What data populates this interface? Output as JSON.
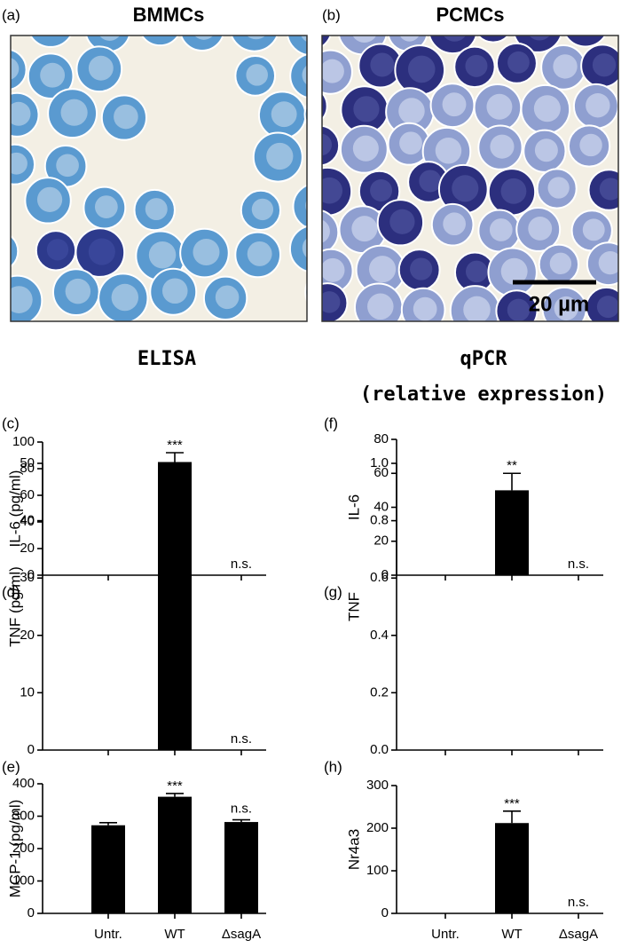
{
  "images": [
    {
      "label": "(a)",
      "title": "BMMCs"
    },
    {
      "label": "(b)",
      "title": "PCMCs",
      "scale_bar": "20 µm"
    }
  ],
  "sections": [
    "ELISA",
    "qPCR",
    "(relative expression)"
  ],
  "chart_data": [
    {
      "type": "bar",
      "label": "(c)",
      "ylabel": "IL-6 (pg/ml)",
      "categories": [
        null,
        null,
        null
      ],
      "values": [
        0,
        85,
        0
      ],
      "errors": [
        null,
        7,
        null
      ],
      "significance": [
        null,
        "***",
        "n.s."
      ],
      "color": "#000000",
      "ylim": [
        0,
        100
      ],
      "yticks": [
        0,
        20,
        40,
        60,
        80,
        100
      ]
    },
    {
      "type": "bar",
      "label": "(d)",
      "ylabel": "TNF (pg/ml)",
      "categories": [
        null,
        null,
        null
      ],
      "values": [
        0,
        33,
        0
      ],
      "errors": [
        null,
        6.5,
        null
      ],
      "significance": [
        null,
        "**",
        "n.s."
      ],
      "color": "#000000",
      "ylim": [
        0,
        50
      ],
      "yticks": [
        0,
        10,
        20,
        30,
        40,
        50
      ]
    },
    {
      "type": "bar",
      "label": "(e)",
      "ylabel": "MCP-1 (pg/ml)",
      "categories": [
        "Untr.",
        "WT",
        "ΔsagA"
      ],
      "values": [
        272,
        360,
        282
      ],
      "errors": [
        8,
        10,
        7
      ],
      "significance": [
        null,
        "***",
        "n.s."
      ],
      "color": "#000000",
      "ylim": [
        0,
        400
      ],
      "yticks": [
        0,
        100,
        200,
        300,
        400
      ]
    },
    {
      "type": "bar",
      "label": "(f)",
      "ylabel": "IL-6",
      "categories": [
        null,
        null,
        null
      ],
      "values": [
        0,
        50,
        0
      ],
      "errors": [
        null,
        10,
        null
      ],
      "significance": [
        null,
        "**",
        "n.s."
      ],
      "color": "#000000",
      "ylim": [
        0,
        80
      ],
      "yticks": [
        0,
        20,
        40,
        60,
        80
      ]
    },
    {
      "type": "bar",
      "label": "(g)",
      "ylabel": "TNF",
      "categories": [
        null,
        null,
        null
      ],
      "values": [
        null,
        null,
        null
      ],
      "errors": [
        null,
        null,
        null
      ],
      "significance": [
        null,
        null,
        null
      ],
      "color": "#000000",
      "ylim": [
        0,
        1
      ],
      "yticks": [
        {
          "value": 0,
          "label": "0.0"
        },
        0.2,
        0.4,
        0.6,
        0.8,
        {
          "value": 1,
          "label": "1.0"
        }
      ]
    },
    {
      "type": "bar",
      "label": "(h)",
      "ylabel": "Nr4a3",
      "categories": [
        "Untr.",
        "WT",
        "ΔsagA"
      ],
      "values": [
        0,
        212,
        0
      ],
      "errors": [
        null,
        28,
        null
      ],
      "significance": [
        null,
        "***",
        "n.s."
      ],
      "color": "#000000",
      "ylim": [
        0,
        300
      ],
      "yticks": [
        0,
        100,
        200,
        300
      ]
    }
  ]
}
